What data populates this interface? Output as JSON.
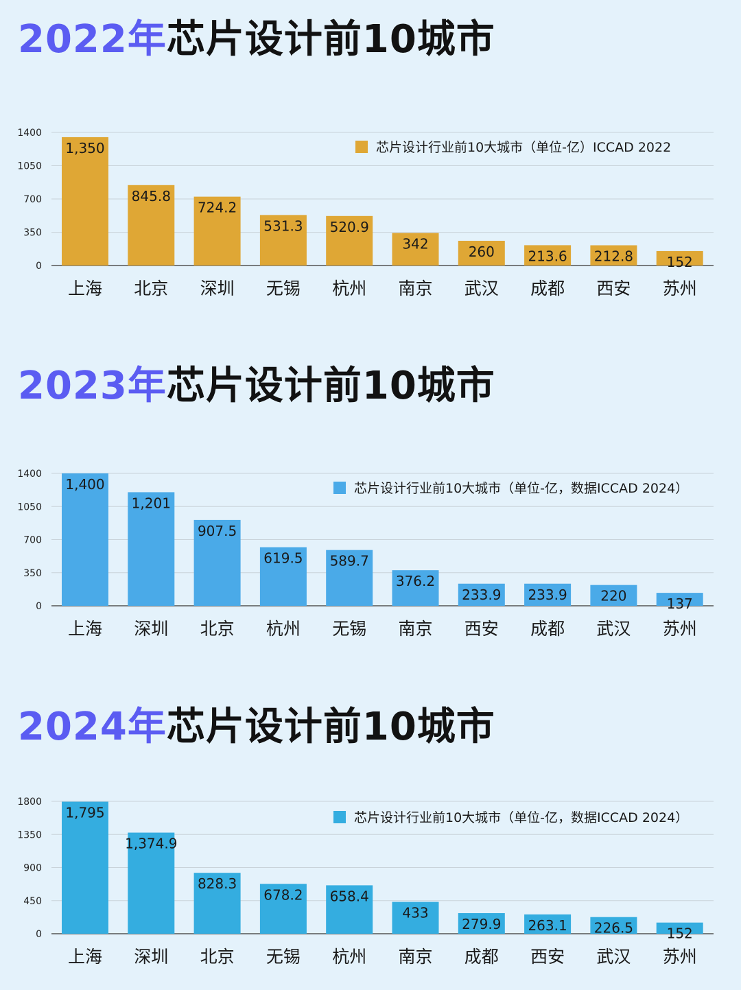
{
  "charts": [
    {
      "title_year": "2022年",
      "title_rest": "芯片设计前10城市",
      "legend": "芯片设计行业前10大城市（单位-亿）ICCAD 2022",
      "colors": {
        "bar": "#dfa735",
        "legend": "#dfa735"
      },
      "display_labels": [
        "1,350",
        "845.8",
        "724.2",
        "531.3",
        "520.9",
        "342",
        "260",
        "213.6",
        "212.8",
        "152"
      ]
    },
    {
      "title_year": "2023年",
      "title_rest": "芯片设计前10城市",
      "legend": "芯片设计行业前10大城市（单位-亿，数据ICCAD 2024）",
      "colors": {
        "bar": "#4aaae8",
        "legend": "#4aaae8"
      },
      "display_labels": [
        "1,400",
        "1,201",
        "907.5",
        "619.5",
        "589.7",
        "376.2",
        "233.9",
        "233.9",
        "220",
        "137"
      ]
    },
    {
      "title_year": "2024年",
      "title_rest": "芯片设计前10城市",
      "legend": "芯片设计行业前10大城市（单位-亿，数据ICCAD 2024）",
      "colors": {
        "bar": "#34ade0",
        "legend": "#34ade0"
      },
      "display_labels": [
        "1,795",
        "1,374.9",
        "828.3",
        "678.2",
        "658.4",
        "433",
        "279.9",
        "263.1",
        "226.5",
        "152"
      ]
    }
  ],
  "chart_data": [
    {
      "type": "bar",
      "title": "2022年芯片设计前10城市",
      "categories": [
        "上海",
        "北京",
        "深圳",
        "无锡",
        "杭州",
        "南京",
        "武汉",
        "成都",
        "西安",
        "苏州"
      ],
      "series": [
        {
          "name": "芯片设计行业前10大城市（单位-亿）ICCAD 2022",
          "values": [
            1350,
            845.8,
            724.2,
            531.3,
            520.9,
            342,
            260,
            213.6,
            212.8,
            152
          ]
        }
      ],
      "yticks": [
        0,
        350,
        700,
        1050,
        1400
      ],
      "ylim": [
        0,
        1400
      ],
      "grid": true,
      "legend_position": "top-right"
    },
    {
      "type": "bar",
      "title": "2023年芯片设计前10城市",
      "categories": [
        "上海",
        "深圳",
        "北京",
        "杭州",
        "无锡",
        "南京",
        "西安",
        "成都",
        "武汉",
        "苏州"
      ],
      "series": [
        {
          "name": "芯片设计行业前10大城市（单位-亿，数据ICCAD 2024）",
          "values": [
            1400,
            1201,
            907.5,
            619.5,
            589.7,
            376.2,
            233.9,
            233.9,
            220,
            137
          ]
        }
      ],
      "yticks": [
        0,
        350,
        700,
        1050,
        1400
      ],
      "ylim": [
        0,
        1400
      ],
      "grid": true,
      "legend_position": "top-right"
    },
    {
      "type": "bar",
      "title": "2024年芯片设计前10城市",
      "categories": [
        "上海",
        "深圳",
        "北京",
        "无锡",
        "杭州",
        "南京",
        "成都",
        "西安",
        "武汉",
        "苏州"
      ],
      "series": [
        {
          "name": "芯片设计行业前10大城市（单位-亿，数据ICCAD 2024）",
          "values": [
            1795,
            1374.9,
            828.3,
            678.2,
            658.4,
            433,
            279.9,
            263.1,
            226.5,
            152
          ]
        }
      ],
      "yticks": [
        0,
        450,
        900,
        1350,
        1800
      ],
      "ylim": [
        0,
        1800
      ],
      "grid": true,
      "legend_position": "top-right"
    }
  ]
}
